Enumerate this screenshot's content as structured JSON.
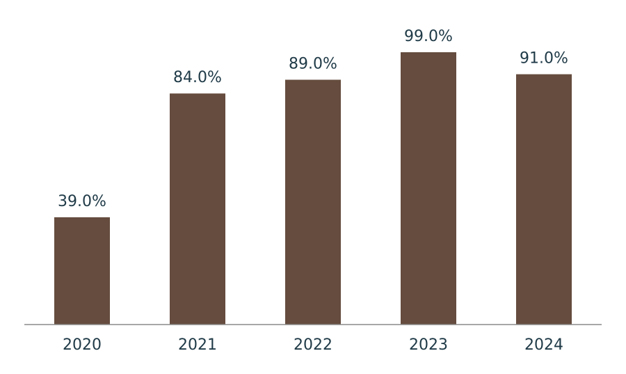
{
  "chart_data": {
    "type": "bar",
    "categories": [
      "2020",
      "2021",
      "2022",
      "2023",
      "2024"
    ],
    "values": [
      39.0,
      84.0,
      89.0,
      99.0,
      91.0
    ],
    "value_labels": [
      "39.0%",
      "84.0%",
      "89.0%",
      "99.0%",
      "91.0%"
    ],
    "unit": "%",
    "ylim": [
      0,
      100
    ],
    "grid": false,
    "legend": "none"
  },
  "colors": {
    "bar": "#654c3e",
    "axis": "#8a8a8a",
    "text": "#1f3a47"
  }
}
